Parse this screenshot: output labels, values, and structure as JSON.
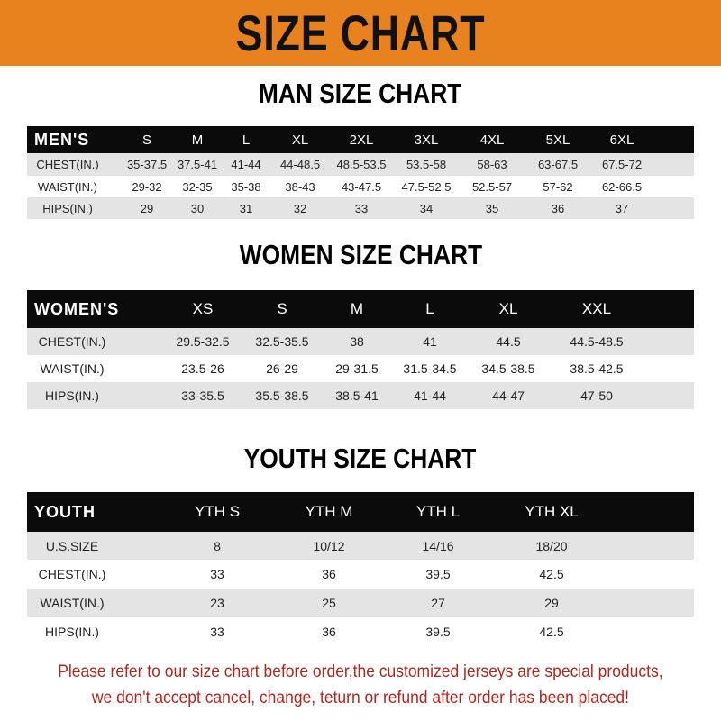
{
  "banner": {
    "title": "SIZE CHART",
    "color": "#e8821e"
  },
  "men": {
    "title": "MAN SIZE CHART",
    "header": [
      "MEN'S",
      "S",
      "M",
      "L",
      "XL",
      "2XL",
      "3XL",
      "4XL",
      "5XL",
      "6XL"
    ],
    "rows": [
      [
        "CHEST(IN.)",
        "35-37.5",
        "37.5-41",
        "41-44",
        "44-48.5",
        "48.5-53.5",
        "53.5-58",
        "58-63",
        "63-67.5",
        "67.5-72"
      ],
      [
        "WAIST(IN.)",
        "29-32",
        "32-35",
        "35-38",
        "38-43",
        "43-47.5",
        "47.5-52.5",
        "52.5-57",
        "57-62",
        "62-66.5"
      ],
      [
        "HIPS(IN.)",
        "29",
        "30",
        "31",
        "32",
        "33",
        "34",
        "35",
        "36",
        "37"
      ]
    ]
  },
  "women": {
    "title": "WOMEN SIZE CHART",
    "header": [
      "WOMEN'S",
      "XS",
      "S",
      "M",
      "L",
      "XL",
      "XXL"
    ],
    "rows": [
      [
        "CHEST(IN.)",
        "29.5-32.5",
        "32.5-35.5",
        "38",
        "41",
        "44.5",
        "44.5-48.5"
      ],
      [
        "WAIST(IN.)",
        "23.5-26",
        "26-29",
        "29-31.5",
        "31.5-34.5",
        "34.5-38.5",
        "38.5-42.5"
      ],
      [
        "HIPS(IN.)",
        "33-35.5",
        "35.5-38.5",
        "38.5-41",
        "41-44",
        "44-47",
        "47-50"
      ]
    ]
  },
  "youth": {
    "title": "YOUTH SIZE CHART",
    "header": [
      "YOUTH",
      "YTH S",
      "YTH M",
      "YTH L",
      "YTH XL"
    ],
    "rows": [
      [
        "U.S.SIZE",
        "8",
        "10/12",
        "14/16",
        "18/20"
      ],
      [
        "CHEST(IN.)",
        "33",
        "36",
        "39.5",
        "42.5"
      ],
      [
        "WAIST(IN.)",
        "23",
        "25",
        "27",
        "29"
      ],
      [
        "HIPS(IN.)",
        "33",
        "36",
        "39.5",
        "42.5"
      ]
    ]
  },
  "footer": {
    "line1": "Please refer to our size chart before order,the customized jerseys are special products,",
    "line2": "we don't accept cancel, change, teturn or refund after order has been placed!",
    "color": "#b3261e"
  }
}
